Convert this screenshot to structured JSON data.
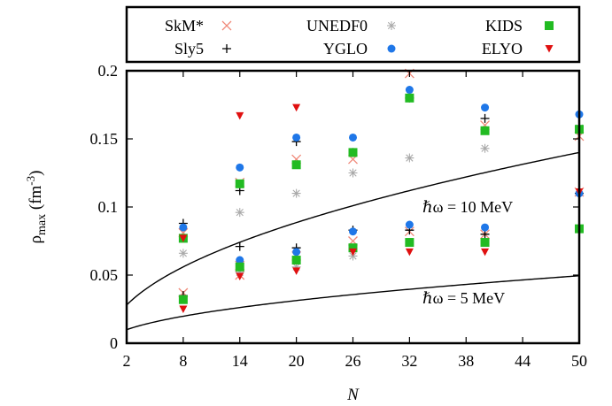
{
  "chart_data": {
    "type": "scatter",
    "xlabel": "N",
    "ylabel": {
      "base": "ρ",
      "sub": "max",
      "unit_prefix": "(fm",
      "unit_sup": "-3",
      "unit_suffix": ")"
    },
    "xlim": [
      2,
      50
    ],
    "ylim": [
      0,
      0.2
    ],
    "x_ticks": [
      2,
      8,
      14,
      20,
      26,
      32,
      38,
      44,
      50
    ],
    "x_tick_labels": [
      "2",
      "8",
      "14",
      "20",
      "26",
      "32",
      "38",
      "44",
      "50"
    ],
    "y_ticks": [
      0,
      0.05,
      0.1,
      0.15,
      0.2
    ],
    "y_tick_labels": [
      "0",
      "0.05",
      "0.1",
      "0.15",
      "0.2"
    ],
    "grid": false,
    "legend_placement": "top (above plot)",
    "series": [
      {
        "name": "SkM*",
        "marker": "x",
        "color": "#f08878",
        "points": [
          [
            8,
            0.037
          ],
          [
            8,
            0.081
          ],
          [
            14,
            0.05
          ],
          [
            14,
            0.057
          ],
          [
            14,
            0.118
          ],
          [
            20,
            0.064
          ],
          [
            20,
            0.135
          ],
          [
            26,
            0.075
          ],
          [
            26,
            0.135
          ],
          [
            32,
            0.082
          ],
          [
            32,
            0.198
          ],
          [
            40,
            0.08
          ],
          [
            40,
            0.16
          ],
          [
            50,
            0.111
          ],
          [
            50,
            0.152
          ]
        ]
      },
      {
        "name": "Sly5",
        "marker": "plus",
        "color": "#000000",
        "points": [
          [
            8,
            0.035
          ],
          [
            8,
            0.088
          ],
          [
            14,
            0.071
          ],
          [
            14,
            0.112
          ],
          [
            20,
            0.07
          ],
          [
            20,
            0.148
          ],
          [
            26,
            0.083
          ],
          [
            26,
            0.14
          ],
          [
            32,
            0.083
          ],
          [
            32,
            0.18
          ],
          [
            40,
            0.08
          ],
          [
            40,
            0.165
          ],
          [
            50,
            0.11
          ],
          [
            50,
            0.156
          ]
        ]
      },
      {
        "name": "UNEDF0",
        "marker": "asterisk",
        "color": "#aaaaaa",
        "points": [
          [
            8,
            0.066
          ],
          [
            14,
            0.096
          ],
          [
            14,
            0.052
          ],
          [
            20,
            0.11
          ],
          [
            20,
            0.056
          ],
          [
            26,
            0.125
          ],
          [
            26,
            0.064
          ],
          [
            32,
            0.136
          ],
          [
            40,
            0.143
          ],
          [
            50,
            0.158
          ]
        ]
      },
      {
        "name": "YGLO",
        "marker": "circle",
        "color": "#1f77e8",
        "points": [
          [
            8,
            0.085
          ],
          [
            8,
            0.032
          ],
          [
            14,
            0.129
          ],
          [
            14,
            0.061
          ],
          [
            20,
            0.151
          ],
          [
            20,
            0.067
          ],
          [
            26,
            0.151
          ],
          [
            26,
            0.082
          ],
          [
            32,
            0.186
          ],
          [
            32,
            0.087
          ],
          [
            40,
            0.173
          ],
          [
            40,
            0.085
          ],
          [
            50,
            0.168
          ],
          [
            50,
            0.11
          ]
        ]
      },
      {
        "name": "KIDS",
        "marker": "square",
        "color": "#22bb22",
        "points": [
          [
            8,
            0.077
          ],
          [
            8,
            0.032
          ],
          [
            14,
            0.117
          ],
          [
            14,
            0.056
          ],
          [
            20,
            0.131
          ],
          [
            20,
            0.061
          ],
          [
            26,
            0.14
          ],
          [
            26,
            0.07
          ],
          [
            32,
            0.18
          ],
          [
            32,
            0.074
          ],
          [
            40,
            0.156
          ],
          [
            40,
            0.074
          ],
          [
            50,
            0.157
          ],
          [
            50,
            0.084
          ]
        ]
      },
      {
        "name": "ELYO",
        "marker": "triangle-down",
        "color": "#e01010",
        "points": [
          [
            8,
            0.077
          ],
          [
            8,
            0.025
          ],
          [
            14,
            0.167
          ],
          [
            14,
            0.049
          ],
          [
            20,
            0.173
          ],
          [
            20,
            0.053
          ],
          [
            26,
            0.067
          ],
          [
            32,
            0.067
          ],
          [
            40,
            0.067
          ],
          [
            50,
            0.111
          ]
        ]
      }
    ],
    "curves": [
      {
        "label": "ℏω = 10 MeV",
        "hbar_omega": 10
      },
      {
        "label": "ℏω = 5 MeV",
        "hbar_omega": 5
      }
    ]
  }
}
